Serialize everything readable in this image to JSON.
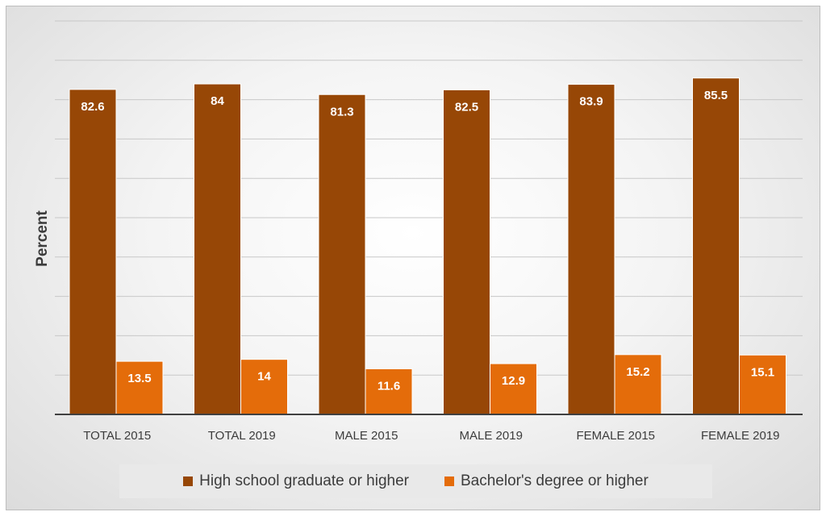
{
  "colors": {
    "high_school": "#974706",
    "bachelors": "#E46C0A",
    "gridline": "#c8c8c8",
    "axis": "#404040"
  },
  "chart_data": {
    "type": "bar",
    "title": "",
    "xlabel": "",
    "ylabel": "Percent",
    "ylim": [
      0,
      100
    ],
    "grid": true,
    "legend_position": "bottom",
    "categories": [
      "TOTAL 2015",
      "TOTAL 2019",
      "MALE 2015",
      "MALE 2019",
      "FEMALE 2015",
      "FEMALE 2019"
    ],
    "series": [
      {
        "name": "High school graduate or higher",
        "values": [
          82.6,
          84,
          81.3,
          82.5,
          83.9,
          85.5
        ]
      },
      {
        "name": "Bachelor's degree or higher",
        "values": [
          13.5,
          14,
          11.6,
          12.9,
          15.2,
          15.1
        ]
      }
    ]
  }
}
